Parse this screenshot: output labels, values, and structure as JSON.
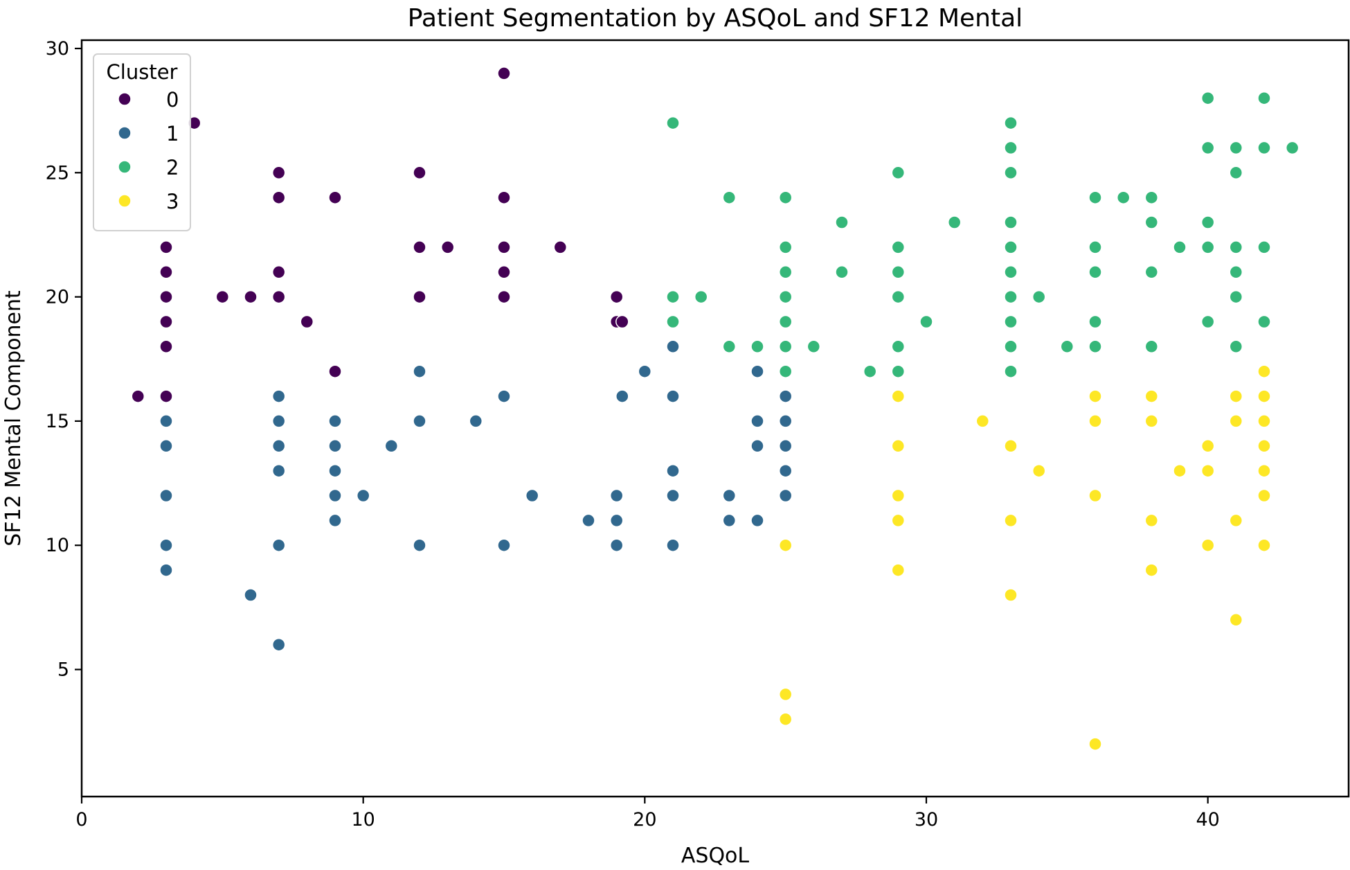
{
  "chart_data": {
    "type": "scatter",
    "title": "Patient Segmentation by ASQoL and SF12 Mental",
    "xlabel": "ASQoL",
    "ylabel": "SF12 Mental Component",
    "xlim": [
      0,
      45
    ],
    "ylim": [
      1,
      30
    ],
    "x_ticks": [
      0,
      10,
      20,
      30,
      40
    ],
    "y_ticks": [
      5,
      10,
      15,
      20,
      25,
      30
    ],
    "grid": false,
    "legend": {
      "title": "Cluster",
      "placement": "top-left"
    },
    "series": [
      {
        "name": "0",
        "color": "#440154",
        "points": [
          [
            2,
            16
          ],
          [
            3,
            22
          ],
          [
            3,
            21
          ],
          [
            3,
            20
          ],
          [
            3,
            19
          ],
          [
            3,
            18
          ],
          [
            3,
            16
          ],
          [
            4,
            27
          ],
          [
            5,
            20
          ],
          [
            6,
            20
          ],
          [
            7,
            25
          ],
          [
            7,
            24
          ],
          [
            7,
            21
          ],
          [
            7,
            20
          ],
          [
            8,
            19
          ],
          [
            9,
            24
          ],
          [
            9,
            17
          ],
          [
            12,
            25
          ],
          [
            12,
            22
          ],
          [
            12,
            20
          ],
          [
            13,
            22
          ],
          [
            15,
            29
          ],
          [
            15,
            24
          ],
          [
            15,
            22
          ],
          [
            15,
            21
          ],
          [
            15,
            20
          ],
          [
            17,
            22
          ],
          [
            19,
            20
          ],
          [
            19,
            19
          ],
          [
            19.2,
            19
          ]
        ]
      },
      {
        "name": "1",
        "color": "#31688e",
        "points": [
          [
            3,
            15
          ],
          [
            3,
            14
          ],
          [
            3,
            12
          ],
          [
            3,
            10
          ],
          [
            3,
            9
          ],
          [
            6,
            8
          ],
          [
            7,
            16
          ],
          [
            7,
            15
          ],
          [
            7,
            14
          ],
          [
            7,
            13
          ],
          [
            7,
            10
          ],
          [
            7,
            6
          ],
          [
            9,
            15
          ],
          [
            9,
            14
          ],
          [
            9,
            13
          ],
          [
            9,
            12
          ],
          [
            9,
            11
          ],
          [
            10,
            12
          ],
          [
            11,
            14
          ],
          [
            12,
            17
          ],
          [
            12,
            15
          ],
          [
            12,
            10
          ],
          [
            14,
            15
          ],
          [
            15,
            16
          ],
          [
            15,
            10
          ],
          [
            16,
            12
          ],
          [
            18,
            11
          ],
          [
            19,
            12
          ],
          [
            19,
            11
          ],
          [
            19,
            10
          ],
          [
            19.2,
            16
          ],
          [
            20,
            17
          ],
          [
            21,
            18
          ],
          [
            21,
            16
          ],
          [
            21,
            13
          ],
          [
            21,
            12
          ],
          [
            21,
            10
          ],
          [
            23,
            12
          ],
          [
            23,
            11
          ],
          [
            24,
            17
          ],
          [
            24,
            15
          ],
          [
            24,
            14
          ],
          [
            24,
            11
          ],
          [
            25,
            16
          ],
          [
            25,
            15
          ],
          [
            25,
            14
          ],
          [
            25,
            13
          ],
          [
            25,
            12
          ]
        ]
      },
      {
        "name": "2",
        "color": "#35b779",
        "points": [
          [
            21,
            27
          ],
          [
            21,
            20
          ],
          [
            21,
            19
          ],
          [
            22,
            20
          ],
          [
            23,
            24
          ],
          [
            23,
            18
          ],
          [
            24,
            18
          ],
          [
            25,
            24
          ],
          [
            25,
            22
          ],
          [
            25,
            21
          ],
          [
            25,
            20
          ],
          [
            25,
            19
          ],
          [
            25,
            18
          ],
          [
            25,
            17
          ],
          [
            26,
            18
          ],
          [
            27,
            23
          ],
          [
            27,
            21
          ],
          [
            28,
            17
          ],
          [
            29,
            25
          ],
          [
            29,
            22
          ],
          [
            29,
            21
          ],
          [
            29,
            20
          ],
          [
            29,
            18
          ],
          [
            29,
            17
          ],
          [
            30,
            19
          ],
          [
            31,
            23
          ],
          [
            33,
            27
          ],
          [
            33,
            26
          ],
          [
            33,
            25
          ],
          [
            33,
            23
          ],
          [
            33,
            22
          ],
          [
            33,
            21
          ],
          [
            33,
            20
          ],
          [
            33,
            19
          ],
          [
            33,
            18
          ],
          [
            33,
            17
          ],
          [
            34,
            20
          ],
          [
            35,
            18
          ],
          [
            36,
            24
          ],
          [
            36,
            22
          ],
          [
            36,
            21
          ],
          [
            36,
            19
          ],
          [
            36,
            18
          ],
          [
            37,
            24
          ],
          [
            38,
            24
          ],
          [
            38,
            23
          ],
          [
            38,
            21
          ],
          [
            38,
            18
          ],
          [
            39,
            22
          ],
          [
            40,
            28
          ],
          [
            40,
            26
          ],
          [
            40,
            23
          ],
          [
            40,
            22
          ],
          [
            40,
            19
          ],
          [
            41,
            26
          ],
          [
            41,
            25
          ],
          [
            41,
            22
          ],
          [
            41,
            21
          ],
          [
            41,
            20
          ],
          [
            41,
            18
          ],
          [
            42,
            28
          ],
          [
            42,
            26
          ],
          [
            42,
            22
          ],
          [
            42,
            19
          ],
          [
            43,
            26
          ]
        ]
      },
      {
        "name": "3",
        "color": "#fde725",
        "points": [
          [
            25,
            10
          ],
          [
            25,
            4
          ],
          [
            25,
            3
          ],
          [
            29,
            16
          ],
          [
            29,
            14
          ],
          [
            29,
            12
          ],
          [
            29,
            11
          ],
          [
            29,
            9
          ],
          [
            32,
            15
          ],
          [
            33,
            14
          ],
          [
            33,
            11
          ],
          [
            33,
            8
          ],
          [
            34,
            13
          ],
          [
            36,
            16
          ],
          [
            36,
            15
          ],
          [
            36,
            12
          ],
          [
            36,
            2
          ],
          [
            38,
            16
          ],
          [
            38,
            15
          ],
          [
            38,
            11
          ],
          [
            38,
            9
          ],
          [
            39,
            13
          ],
          [
            40,
            14
          ],
          [
            40,
            13
          ],
          [
            40,
            10
          ],
          [
            41,
            16
          ],
          [
            41,
            15
          ],
          [
            41,
            11
          ],
          [
            41,
            7
          ],
          [
            42,
            17
          ],
          [
            42,
            16
          ],
          [
            42,
            15
          ],
          [
            42,
            14
          ],
          [
            42,
            13
          ],
          [
            42,
            12
          ],
          [
            42,
            10
          ]
        ]
      }
    ]
  }
}
